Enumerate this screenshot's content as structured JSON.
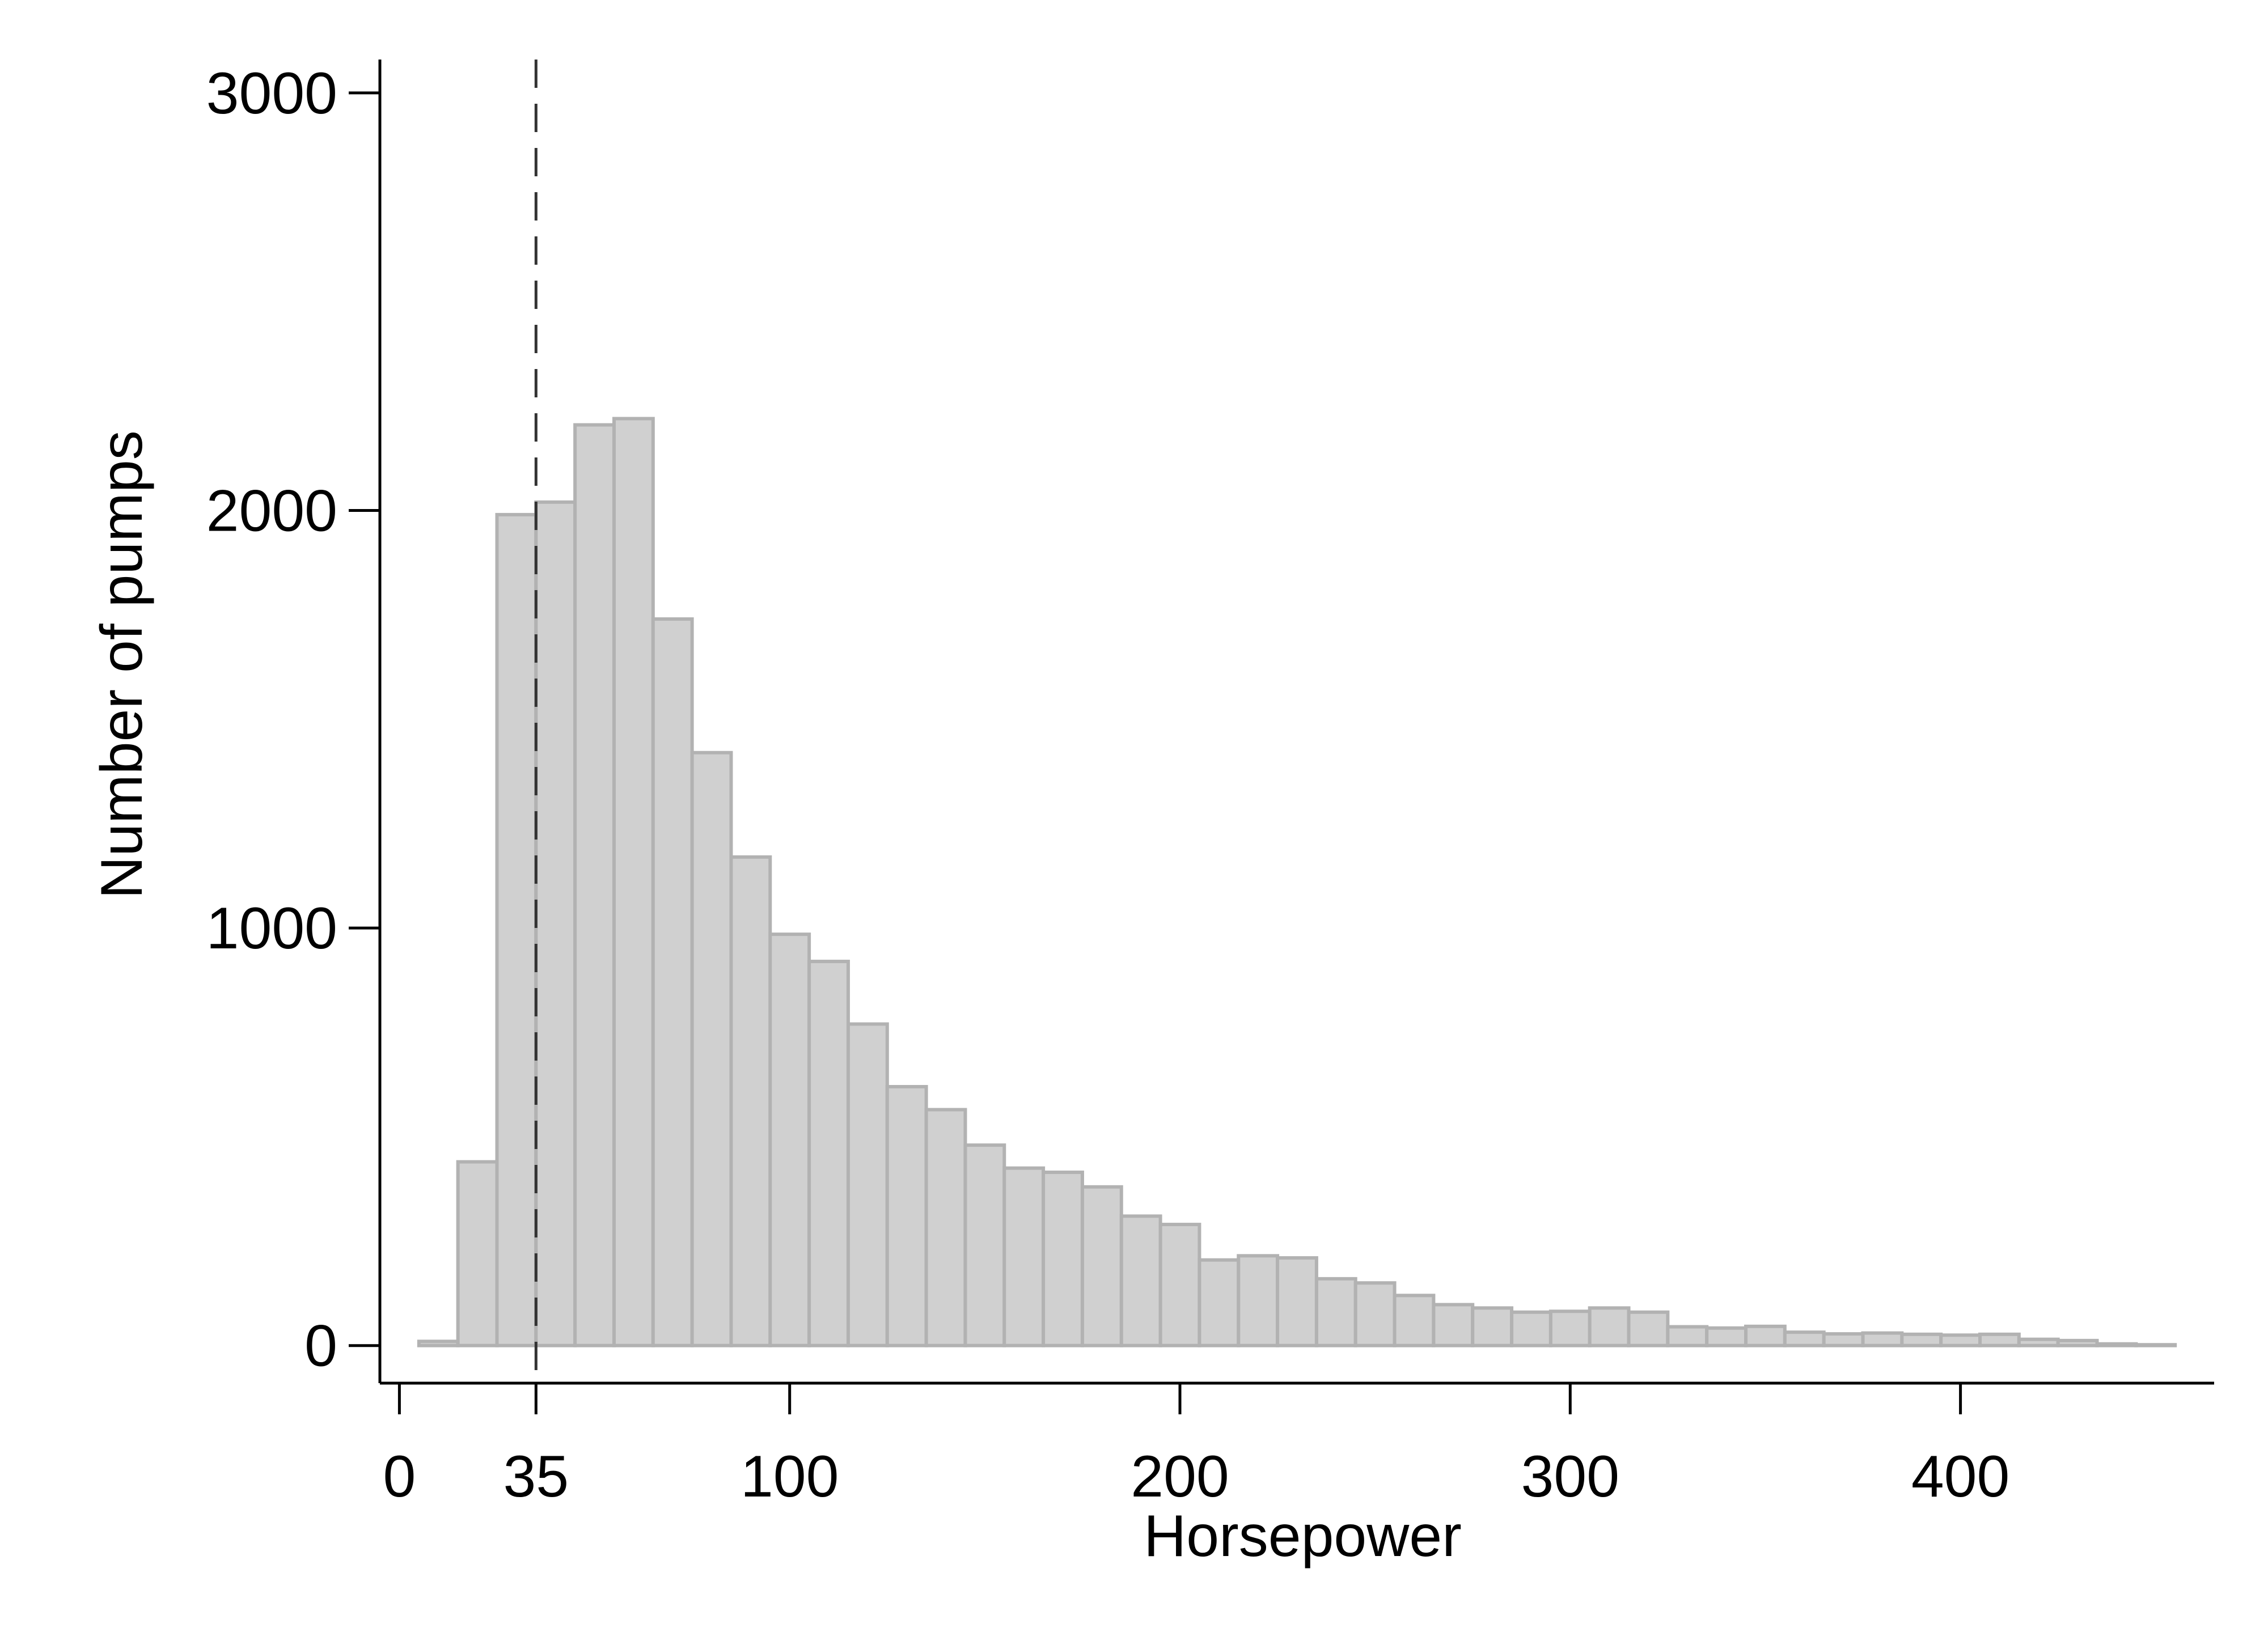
{
  "chart_data": {
    "type": "bar",
    "xlabel": "Horsepower",
    "ylabel": "Number of pumps",
    "xlim": [
      -5,
      465
    ],
    "ylim": [
      -90,
      3080
    ],
    "xticks": [
      0,
      35,
      100,
      200,
      300,
      400
    ],
    "yticks": [
      0,
      1000,
      2000,
      3000
    ],
    "reference_line": {
      "x": 35,
      "style": "dashed"
    },
    "bin_width": 10,
    "bins": [
      {
        "start": 5,
        "value": 10
      },
      {
        "start": 15,
        "value": 440
      },
      {
        "start": 25,
        "value": 1990
      },
      {
        "start": 35,
        "value": 2020
      },
      {
        "start": 45,
        "value": 2205
      },
      {
        "start": 55,
        "value": 2220
      },
      {
        "start": 65,
        "value": 1740
      },
      {
        "start": 75,
        "value": 1420
      },
      {
        "start": 85,
        "value": 1170
      },
      {
        "start": 95,
        "value": 985
      },
      {
        "start": 105,
        "value": 920
      },
      {
        "start": 115,
        "value": 770
      },
      {
        "start": 125,
        "value": 620
      },
      {
        "start": 135,
        "value": 565
      },
      {
        "start": 145,
        "value": 480
      },
      {
        "start": 155,
        "value": 425
      },
      {
        "start": 165,
        "value": 415
      },
      {
        "start": 175,
        "value": 380
      },
      {
        "start": 185,
        "value": 310
      },
      {
        "start": 195,
        "value": 290
      },
      {
        "start": 205,
        "value": 205
      },
      {
        "start": 215,
        "value": 215
      },
      {
        "start": 225,
        "value": 210
      },
      {
        "start": 235,
        "value": 160
      },
      {
        "start": 245,
        "value": 150
      },
      {
        "start": 255,
        "value": 120
      },
      {
        "start": 265,
        "value": 98
      },
      {
        "start": 275,
        "value": 90
      },
      {
        "start": 285,
        "value": 80
      },
      {
        "start": 295,
        "value": 82
      },
      {
        "start": 305,
        "value": 90
      },
      {
        "start": 315,
        "value": 80
      },
      {
        "start": 325,
        "value": 45
      },
      {
        "start": 335,
        "value": 42
      },
      {
        "start": 345,
        "value": 46
      },
      {
        "start": 355,
        "value": 32
      },
      {
        "start": 365,
        "value": 28
      },
      {
        "start": 375,
        "value": 30
      },
      {
        "start": 385,
        "value": 27
      },
      {
        "start": 395,
        "value": 25
      },
      {
        "start": 405,
        "value": 27
      },
      {
        "start": 415,
        "value": 15
      },
      {
        "start": 425,
        "value": 12
      },
      {
        "start": 435,
        "value": 4
      },
      {
        "start": 445,
        "value": 2
      }
    ]
  }
}
